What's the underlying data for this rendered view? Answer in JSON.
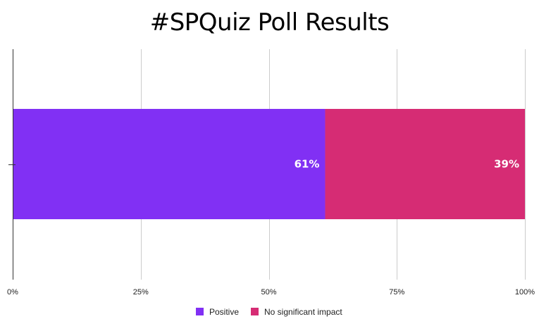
{
  "chart_data": {
    "type": "bar",
    "orientation": "horizontal",
    "stacked": true,
    "title": "#SPQuiz Poll Results",
    "categories": [
      ""
    ],
    "series": [
      {
        "name": "Positive",
        "values": [
          61
        ],
        "label": "61%",
        "color": "#8130f4"
      },
      {
        "name": "No significant impact",
        "values": [
          39
        ],
        "label": "39%",
        "color": "#d62c74"
      }
    ],
    "xlim": [
      0,
      100
    ],
    "xticks": [
      {
        "value": 0,
        "label": "0%"
      },
      {
        "value": 25,
        "label": "25%"
      },
      {
        "value": 50,
        "label": "50%"
      },
      {
        "value": 75,
        "label": "75%"
      },
      {
        "value": 100,
        "label": "100%"
      }
    ],
    "xlabel": "",
    "ylabel": "",
    "grid": true,
    "legend_position": "bottom"
  }
}
